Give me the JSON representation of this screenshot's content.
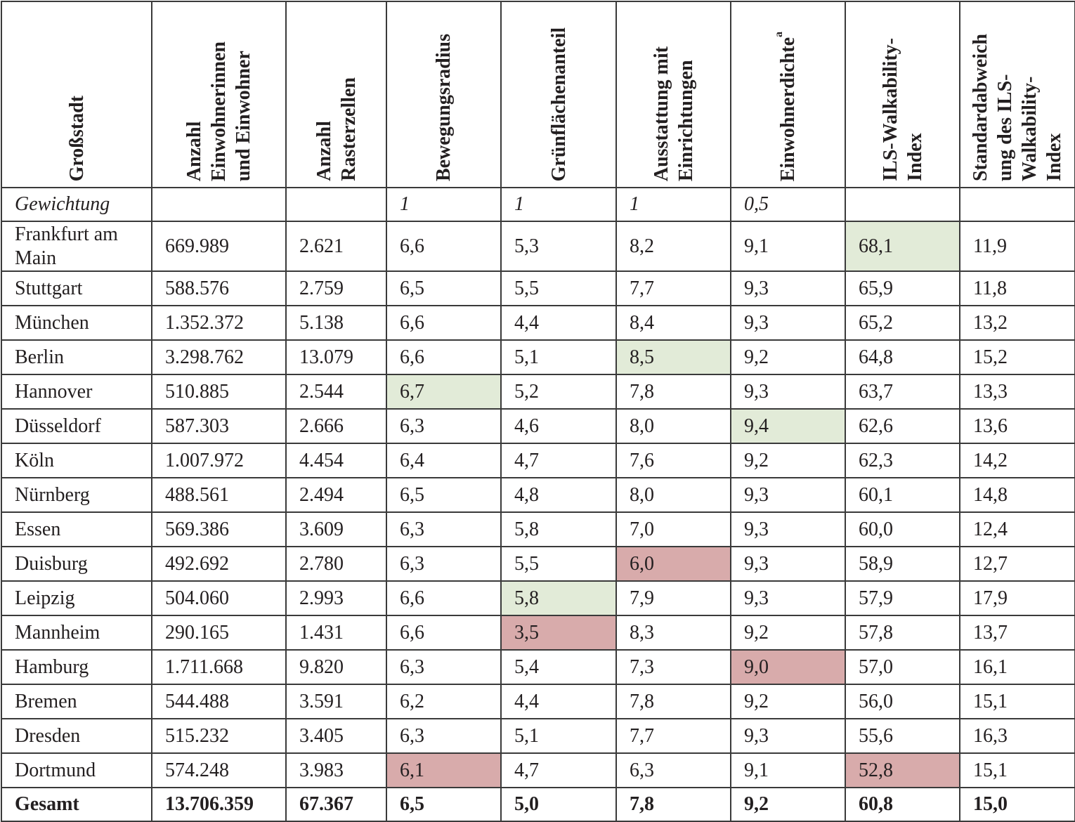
{
  "table": {
    "headers": [
      "Großstadt",
      "Anzahl\nEinwohnerinnen\nund Einwohner",
      "Anzahl\nRasterzellen",
      "Bewegungsradius",
      "Grünflächenanteil",
      "Ausstattung mit\nEinrichtungen",
      "Einwohnerdichte",
      "ILS-Walkability-\nIndex",
      "Standardabweich\nung des ILS-\nWalkability-\nIndex"
    ],
    "header_superscript": "a",
    "weight_row": [
      "Gewichtung",
      "",
      "",
      "1",
      "1",
      "1",
      "0,5",
      "",
      ""
    ],
    "rows": [
      [
        "Frankfurt am Main",
        "669.989",
        "2.621",
        "6,6",
        "5,3",
        "8,2",
        "9,1",
        "68,1",
        "11,9"
      ],
      [
        "Stuttgart",
        "588.576",
        "2.759",
        "6,5",
        "5,5",
        "7,7",
        "9,3",
        "65,9",
        "11,8"
      ],
      [
        "München",
        "1.352.372",
        "5.138",
        "6,6",
        "4,4",
        "8,4",
        "9,3",
        "65,2",
        "13,2"
      ],
      [
        "Berlin",
        "3.298.762",
        "13.079",
        "6,6",
        "5,1",
        "8,5",
        "9,2",
        "64,8",
        "15,2"
      ],
      [
        "Hannover",
        "510.885",
        "2.544",
        "6,7",
        "5,2",
        "7,8",
        "9,3",
        "63,7",
        "13,3"
      ],
      [
        "Düsseldorf",
        "587.303",
        "2.666",
        "6,3",
        "4,6",
        "8,0",
        "9,4",
        "62,6",
        "13,6"
      ],
      [
        "Köln",
        "1.007.972",
        "4.454",
        "6,4",
        "4,7",
        "7,6",
        "9,2",
        "62,3",
        "14,2"
      ],
      [
        "Nürnberg",
        "488.561",
        "2.494",
        "6,5",
        "4,8",
        "8,0",
        "9,3",
        "60,1",
        "14,8"
      ],
      [
        "Essen",
        "569.386",
        "3.609",
        "6,3",
        "5,8",
        "7,0",
        "9,3",
        "60,0",
        "12,4"
      ],
      [
        "Duisburg",
        "492.692",
        "2.780",
        "6,3",
        "5,5",
        "6,0",
        "9,3",
        "58,9",
        "12,7"
      ],
      [
        "Leipzig",
        "504.060",
        "2.993",
        "6,6",
        "5,8",
        "7,9",
        "9,3",
        "57,9",
        "17,9"
      ],
      [
        "Mannheim",
        "290.165",
        "1.431",
        "6,6",
        "3,5",
        "8,3",
        "9,2",
        "57,8",
        "13,7"
      ],
      [
        "Hamburg",
        "1.711.668",
        "9.820",
        "6,3",
        "5,4",
        "7,3",
        "9,0",
        "57,0",
        "16,1"
      ],
      [
        "Bremen",
        "544.488",
        "3.591",
        "6,2",
        "4,4",
        "7,8",
        "9,2",
        "56,0",
        "15,1"
      ],
      [
        "Dresden",
        "515.232",
        "3.405",
        "6,3",
        "5,1",
        "7,7",
        "9,3",
        "55,6",
        "16,3"
      ],
      [
        "Dortmund",
        "574.248",
        "3.983",
        "6,1",
        "4,7",
        "6,3",
        "9,1",
        "52,8",
        "15,1"
      ]
    ],
    "total_row": [
      "Gesamt",
      "13.706.359",
      "67.367",
      "6,5",
      "5,0",
      "7,8",
      "9,2",
      "60,8",
      "15,0"
    ],
    "highlights": {
      "green": [
        [
          0,
          7
        ],
        [
          3,
          5
        ],
        [
          4,
          3
        ],
        [
          5,
          6
        ],
        [
          10,
          4
        ]
      ],
      "red": [
        [
          9,
          5
        ],
        [
          11,
          4
        ],
        [
          12,
          6
        ],
        [
          15,
          3
        ],
        [
          15,
          7
        ]
      ]
    },
    "colors": {
      "green": "#e2ebd8",
      "red": "#d8abab"
    }
  }
}
